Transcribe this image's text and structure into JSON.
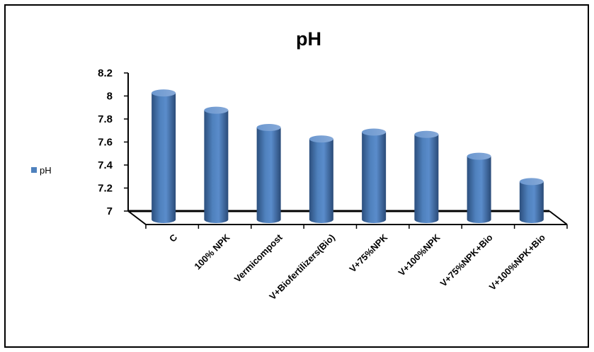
{
  "chart_data": {
    "type": "bar",
    "style": "3d-cylinder",
    "title": "pH",
    "xlabel": "",
    "ylabel": "",
    "categories": [
      "C",
      "100% NPK",
      "Vermicompost",
      "V+Biofertilizers(Bio)",
      "V+75%NPK",
      "V+100%NPK",
      "V+75%NPK+Bio",
      "V+100%NPK+Bio"
    ],
    "series": [
      {
        "name": "pH",
        "color": "#4F81BD",
        "values": [
          8.1,
          7.95,
          7.8,
          7.7,
          7.76,
          7.74,
          7.55,
          7.33
        ]
      }
    ],
    "yticks": [
      "7",
      "7.2",
      "7.4",
      "7.6",
      "7.8",
      "8",
      "8.2"
    ],
    "ylim": [
      7,
      8.2
    ],
    "grid": false,
    "legend_position": "left"
  }
}
